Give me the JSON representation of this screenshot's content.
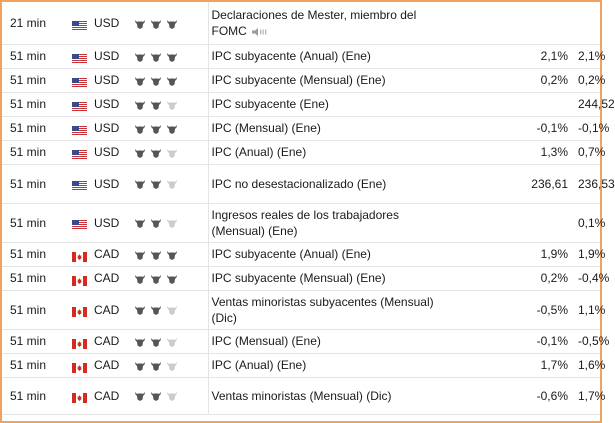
{
  "rows": [
    {
      "time": "21 min",
      "flag": "us-flag-icon",
      "currency": "USD",
      "importance": 3,
      "event": "Declaraciones de Mester, miembro del FOMC",
      "speech": true,
      "actual": "",
      "forecast": "",
      "previous": ""
    },
    {
      "time": "51 min",
      "flag": "us-flag-icon",
      "currency": "USD",
      "importance": 3,
      "event": "IPC subyacente (Anual) (Ene)",
      "speech": false,
      "actual": "",
      "forecast": "2,1%",
      "previous": "2,1%"
    },
    {
      "time": "51 min",
      "flag": "us-flag-icon",
      "currency": "USD",
      "importance": 3,
      "event": "IPC subyacente (Mensual) (Ene)",
      "speech": false,
      "actual": "",
      "forecast": "0,2%",
      "previous": "0,2%"
    },
    {
      "time": "51 min",
      "flag": "us-flag-icon",
      "currency": "USD",
      "importance": 2,
      "event": "IPC subyacente (Ene)",
      "speech": false,
      "actual": "",
      "forecast": "",
      "previous": "244,52"
    },
    {
      "time": "51 min",
      "flag": "us-flag-icon",
      "currency": "USD",
      "importance": 3,
      "event": "IPC (Mensual) (Ene)",
      "speech": false,
      "actual": "",
      "forecast": "-0,1%",
      "previous": "-0,1%"
    },
    {
      "time": "51 min",
      "flag": "us-flag-icon",
      "currency": "USD",
      "importance": 2,
      "event": "IPC (Anual) (Ene)",
      "speech": false,
      "actual": "",
      "forecast": "1,3%",
      "previous": "0,7%"
    },
    {
      "time": "51 min",
      "flag": "us-flag-icon",
      "currency": "USD",
      "importance": 2,
      "event": "IPC no desestacionalizado (Ene)",
      "speech": false,
      "actual": "",
      "forecast": "236,61",
      "previous": "236,53"
    },
    {
      "time": "51 min",
      "flag": "us-flag-icon",
      "currency": "USD",
      "importance": 2,
      "event": "Ingresos reales de los trabajadores (Mensual) (Ene)",
      "speech": false,
      "actual": "",
      "forecast": "",
      "previous": "0,1%"
    },
    {
      "time": "51 min",
      "flag": "ca-flag-icon",
      "currency": "CAD",
      "importance": 3,
      "event": "IPC subyacente (Anual) (Ene)",
      "speech": false,
      "actual": "",
      "forecast": "1,9%",
      "previous": "1,9%"
    },
    {
      "time": "51 min",
      "flag": "ca-flag-icon",
      "currency": "CAD",
      "importance": 3,
      "event": "IPC subyacente (Mensual) (Ene)",
      "speech": false,
      "actual": "",
      "forecast": "0,2%",
      "previous": "-0,4%"
    },
    {
      "time": "51 min",
      "flag": "ca-flag-icon",
      "currency": "CAD",
      "importance": 2,
      "event": "Ventas minoristas subyacentes (Mensual) (Dic)",
      "speech": false,
      "actual": "",
      "forecast": "-0,5%",
      "previous": "1,1%"
    },
    {
      "time": "51 min",
      "flag": "ca-flag-icon",
      "currency": "CAD",
      "importance": 2,
      "event": "IPC (Mensual) (Ene)",
      "speech": false,
      "actual": "",
      "forecast": "-0,1%",
      "previous": "-0,5%"
    },
    {
      "time": "51 min",
      "flag": "ca-flag-icon",
      "currency": "CAD",
      "importance": 2,
      "event": "IPC (Anual) (Ene)",
      "speech": false,
      "actual": "",
      "forecast": "1,7%",
      "previous": "1,6%"
    },
    {
      "time": "51 min",
      "flag": "ca-flag-icon",
      "currency": "CAD",
      "importance": 2,
      "event": "Ventas minoristas (Mensual) (Dic)",
      "speech": false,
      "actual": "",
      "forecast": "-0,6%",
      "previous": "1,7%"
    }
  ],
  "colors": {
    "bull_active": "#565656",
    "bull_inactive": "#cccccc",
    "border": "#e4e4e4",
    "frame": "#f0a35c"
  }
}
